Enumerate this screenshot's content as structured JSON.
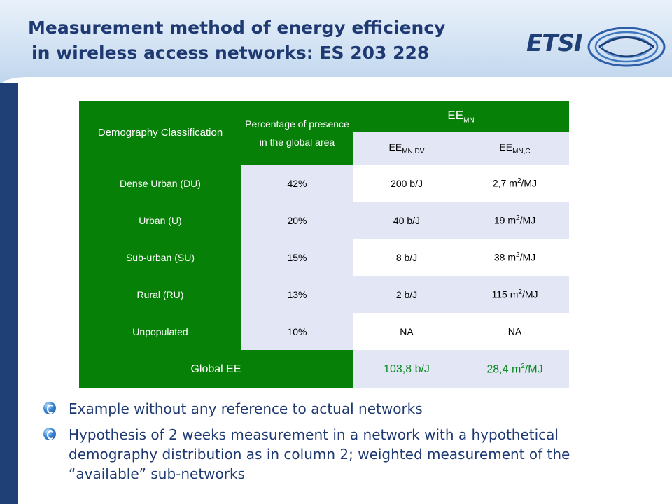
{
  "slide": {
    "title_line1": "Measurement method of energy efficiency",
    "title_line2": "in wireless access networks: ES 203 228",
    "logo": "ETSI"
  },
  "table": {
    "col1_header": "Demography Classification",
    "col2_header": "Percentage of presence in the global area",
    "ee_header": "EE",
    "ee_header_sub": "MN",
    "ee_dv": {
      "base": "EE",
      "sub": "MN,DV"
    },
    "ee_c": {
      "base": "EE",
      "sub": "MN,C"
    },
    "rows": [
      {
        "label": "Dense Urban (DU)",
        "pct": "42%",
        "dv": "200 b/J",
        "c_num": "2,7 m",
        "c_exp": "2",
        "c_unit": "/MJ"
      },
      {
        "label": "Urban (U)",
        "pct": "20%",
        "dv": "40 b/J",
        "c_num": "19 m",
        "c_exp": "2",
        "c_unit": "/MJ"
      },
      {
        "label": "Sub-urban (SU)",
        "pct": "15%",
        "dv": "8 b/J",
        "c_num": "38 m",
        "c_exp": "2",
        "c_unit": "/MJ"
      },
      {
        "label": "Rural (RU)",
        "pct": "13%",
        "dv": "2 b/J",
        "c_num": "115 m",
        "c_exp": "2",
        "c_unit": "/MJ"
      },
      {
        "label": "Unpopulated",
        "pct": "10%",
        "dv": "NA",
        "c_num": "NA",
        "c_exp": "",
        "c_unit": ""
      }
    ],
    "global": {
      "label": "Global EE",
      "dv": "103,8 b/J",
      "c_num": "28,4 m",
      "c_exp": "2",
      "c_unit": "/MJ"
    }
  },
  "bullets": [
    "Example without any reference to actual networks",
    "Hypothesis of 2 weeks measurement in a network with a hypothetical demography distribution as in column 2; weighted measurement of the “available” sub-networks"
  ],
  "colors": {
    "table_green": "#078007",
    "row_lavender": "#e3e7f5",
    "title_blue": "#1f3a73",
    "global_value_green": "#0a8a1e"
  },
  "icons": {
    "bullet": "blue-orb-bullet-icon",
    "logo_graphic": "etsi-logo-waves"
  }
}
